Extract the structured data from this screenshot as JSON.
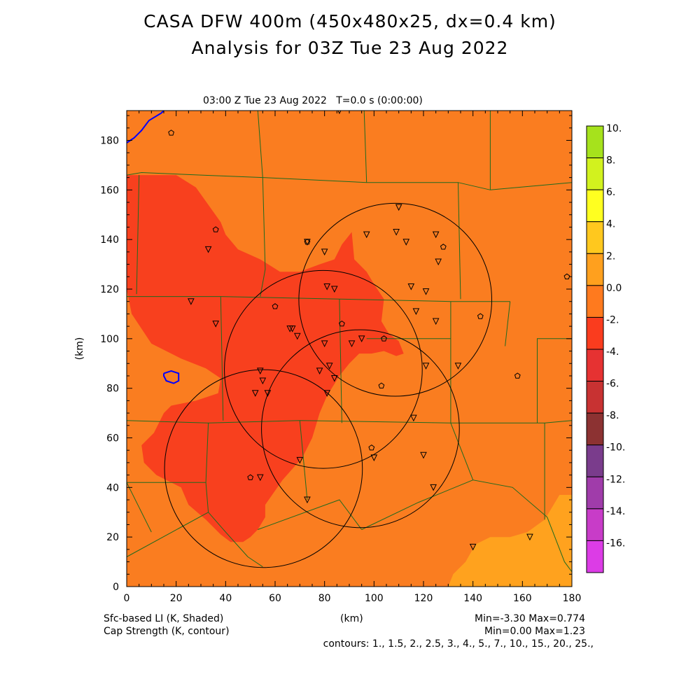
{
  "header": {
    "title_line1": "CASA DFW 400m (450x480x25, dx=0.4 km)",
    "title_line2": "Analysis for 03Z Tue 23 Aug 2022",
    "subtitle": "03:00 Z Tue 23 Aug 2022   T=0.0 s (0:00:00)"
  },
  "footer": {
    "left_line1": "Sfc-based LI (K, Shaded)",
    "left_line2": "Cap Strength (K, contour)",
    "center": "(km)",
    "right_line1": "Min=-3.30 Max=0.774",
    "right_line2": "Min=0.00 Max=1.23",
    "contours": "contours: 1., 1.5, 2., 2.5, 3., 4., 5., 7., 10., 15., 20., 25.,"
  },
  "chart_data": {
    "type": "heatmap",
    "title": "CASA DFW 400m (450x480x25, dx=0.4 km)",
    "subtitle": "Analysis for 03Z Tue 23 Aug 2022",
    "xlabel": "(km)",
    "ylabel": "(km)",
    "xlim": [
      0,
      180
    ],
    "ylim": [
      0,
      192
    ],
    "x_ticks": [
      "0",
      "20",
      "40",
      "60",
      "80",
      "100",
      "120",
      "140",
      "160",
      "180"
    ],
    "y_ticks": [
      "0",
      "20",
      "40",
      "60",
      "80",
      "100",
      "120",
      "140",
      "160",
      "180"
    ],
    "colorbar": {
      "labels": [
        "10.",
        "8.",
        "6.",
        "4.",
        "2.",
        "0.0",
        "-2.",
        "-4.",
        "-6.",
        "-8.",
        "-10.",
        "-12.",
        "-14.",
        "-16."
      ],
      "colors": [
        "#a6e21c",
        "#d2f21e",
        "#ffff20",
        "#ffc81e",
        "#ffa01e",
        "#ff7a1e",
        "#fa3c1e",
        "#e63232",
        "#c83232",
        "#8c3232",
        "#7a3c8c",
        "#a03caa",
        "#c83cc8",
        "#dc3ce6"
      ]
    },
    "shaded_field": {
      "name": "Sfc-based LI (K, Shaded)",
      "min": -3.3,
      "max": 0.774,
      "base_color": "#fa7d20",
      "negative_color": "#f8401e",
      "positive_color": "#ffa21e",
      "negative_region": [
        [
          5,
          166
        ],
        [
          20,
          166
        ],
        [
          28,
          161
        ],
        [
          38,
          147
        ],
        [
          40,
          142
        ],
        [
          45,
          136
        ],
        [
          54,
          132
        ],
        [
          62,
          127
        ],
        [
          70,
          127
        ],
        [
          78,
          130
        ],
        [
          84,
          132
        ],
        [
          87,
          138
        ],
        [
          91,
          143
        ],
        [
          92,
          132
        ],
        [
          97,
          127
        ],
        [
          100,
          122
        ],
        [
          104,
          116
        ],
        [
          103,
          107
        ],
        [
          106,
          102
        ],
        [
          110,
          99
        ],
        [
          112,
          94
        ],
        [
          109,
          93
        ],
        [
          104,
          95
        ],
        [
          99,
          94
        ],
        [
          94,
          94
        ],
        [
          90,
          90
        ],
        [
          86,
          85
        ],
        [
          81,
          77
        ],
        [
          78,
          70
        ],
        [
          75,
          60
        ],
        [
          71,
          52
        ],
        [
          63,
          43
        ],
        [
          56,
          33
        ],
        [
          56,
          28
        ],
        [
          53,
          23
        ],
        [
          50,
          20
        ],
        [
          47,
          18
        ],
        [
          42,
          18
        ],
        [
          38,
          21
        ],
        [
          32,
          27
        ],
        [
          25,
          33
        ],
        [
          22,
          40
        ],
        [
          12,
          45
        ],
        [
          7,
          50
        ],
        [
          6,
          57
        ],
        [
          11,
          62
        ],
        [
          15,
          70
        ],
        [
          18,
          73
        ],
        [
          28,
          75
        ],
        [
          37,
          78
        ],
        [
          38,
          84
        ],
        [
          32,
          88
        ],
        [
          22,
          92
        ],
        [
          10,
          98
        ],
        [
          2,
          110
        ],
        [
          0,
          120
        ],
        [
          0,
          166
        ]
      ],
      "positive_region": [
        [
          130,
          0
        ],
        [
          180,
          0
        ],
        [
          180,
          37
        ],
        [
          175,
          37
        ],
        [
          169,
          27
        ],
        [
          162,
          22
        ],
        [
          155,
          20
        ],
        [
          147,
          20
        ],
        [
          141,
          17
        ],
        [
          137,
          10
        ],
        [
          132,
          5
        ],
        [
          130,
          0
        ]
      ]
    },
    "cap_contours": [
      {
        "value": 1.0,
        "color": "#0000ff",
        "points": [
          [
            0,
            179
          ],
          [
            3,
            181
          ],
          [
            6,
            184
          ],
          [
            9,
            188
          ],
          [
            14,
            191
          ],
          [
            15,
            192
          ]
        ]
      },
      {
        "value": 1.0,
        "color": "#0000ff",
        "points": [
          [
            15,
            86
          ],
          [
            18,
            87
          ],
          [
            21,
            86
          ],
          [
            21,
            83
          ],
          [
            19,
            82
          ],
          [
            16,
            83
          ],
          [
            15,
            85
          ],
          [
            15,
            86
          ]
        ]
      }
    ],
    "radar_rings": [
      {
        "center": [
          108.6,
          115.7
        ],
        "radius": 39
      },
      {
        "center": [
          79.5,
          87.6
        ],
        "radius": 40
      },
      {
        "center": [
          94.5,
          63.7
        ],
        "radius": 40
      },
      {
        "center": [
          55.3,
          47.6
        ],
        "radius": 40
      }
    ],
    "stations_triangle": [
      [
        26,
        115
      ],
      [
        33,
        136
      ],
      [
        36,
        106
      ],
      [
        54,
        87
      ],
      [
        55,
        83
      ],
      [
        52,
        78
      ],
      [
        57,
        78
      ],
      [
        66,
        104
      ],
      [
        67,
        104
      ],
      [
        69,
        101
      ],
      [
        73,
        139
      ],
      [
        80,
        135
      ],
      [
        81,
        121
      ],
      [
        84,
        120
      ],
      [
        80,
        98
      ],
      [
        82,
        89
      ],
      [
        78,
        87
      ],
      [
        81,
        78
      ],
      [
        84,
        84
      ],
      [
        97,
        142
      ],
      [
        110,
        153
      ],
      [
        109,
        143
      ],
      [
        113,
        139
      ],
      [
        115,
        121
      ],
      [
        117,
        111
      ],
      [
        121,
        119
      ],
      [
        125,
        107
      ],
      [
        121,
        89
      ],
      [
        116,
        68
      ],
      [
        120,
        53
      ],
      [
        124,
        40
      ],
      [
        125,
        142
      ],
      [
        126,
        131
      ],
      [
        134,
        89
      ],
      [
        91,
        98
      ],
      [
        95,
        100
      ],
      [
        100,
        52
      ],
      [
        73,
        35
      ],
      [
        70,
        51
      ],
      [
        54,
        44
      ],
      [
        140,
        16
      ],
      [
        163,
        20
      ],
      [
        86,
        192
      ]
    ],
    "stations_pentagon": [
      [
        18,
        183
      ],
      [
        36,
        144
      ],
      [
        60,
        113
      ],
      [
        73,
        139
      ],
      [
        87,
        106
      ],
      [
        104,
        100
      ],
      [
        103,
        81
      ],
      [
        99,
        56
      ],
      [
        128,
        137
      ],
      [
        143,
        109
      ],
      [
        158,
        85
      ],
      [
        178,
        125
      ],
      [
        50,
        44
      ]
    ]
  }
}
